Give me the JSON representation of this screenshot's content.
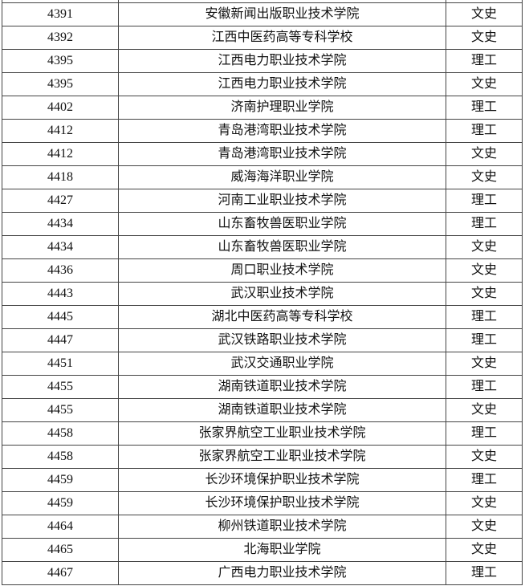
{
  "rows": [
    {
      "score": "4391",
      "school": "安徽新闻出版职业技术学院",
      "track": "文史"
    },
    {
      "score": "4392",
      "school": "江西中医药高等专科学校",
      "track": "文史"
    },
    {
      "score": "4395",
      "school": "江西电力职业技术学院",
      "track": "理工"
    },
    {
      "score": "4395",
      "school": "江西电力职业技术学院",
      "track": "文史"
    },
    {
      "score": "4402",
      "school": "济南护理职业学院",
      "track": "理工"
    },
    {
      "score": "4412",
      "school": "青岛港湾职业技术学院",
      "track": "理工"
    },
    {
      "score": "4412",
      "school": "青岛港湾职业技术学院",
      "track": "文史"
    },
    {
      "score": "4418",
      "school": "威海海洋职业学院",
      "track": "文史"
    },
    {
      "score": "4427",
      "school": "河南工业职业技术学院",
      "track": "理工"
    },
    {
      "score": "4434",
      "school": "山东畜牧兽医职业学院",
      "track": "理工"
    },
    {
      "score": "4434",
      "school": "山东畜牧兽医职业学院",
      "track": "文史"
    },
    {
      "score": "4436",
      "school": "周口职业技术学院",
      "track": "文史"
    },
    {
      "score": "4443",
      "school": "武汉职业技术学院",
      "track": "文史"
    },
    {
      "score": "4445",
      "school": "湖北中医药高等专科学校",
      "track": "理工"
    },
    {
      "score": "4447",
      "school": "武汉铁路职业技术学院",
      "track": "理工"
    },
    {
      "score": "4451",
      "school": "武汉交通职业学院",
      "track": "文史"
    },
    {
      "score": "4455",
      "school": "湖南铁道职业技术学院",
      "track": "理工"
    },
    {
      "score": "4455",
      "school": "湖南铁道职业技术学院",
      "track": "文史"
    },
    {
      "score": "4458",
      "school": "张家界航空工业职业技术学院",
      "track": "理工"
    },
    {
      "score": "4458",
      "school": "张家界航空工业职业技术学院",
      "track": "文史"
    },
    {
      "score": "4459",
      "school": "长沙环境保护职业技术学院",
      "track": "理工"
    },
    {
      "score": "4459",
      "school": "长沙环境保护职业技术学院",
      "track": "文史"
    },
    {
      "score": "4464",
      "school": "柳州铁道职业技术学院",
      "track": "文史"
    },
    {
      "score": "4465",
      "school": "北海职业学院",
      "track": "文史"
    },
    {
      "score": "4467",
      "school": "广西电力职业技术学院",
      "track": "理工"
    }
  ]
}
